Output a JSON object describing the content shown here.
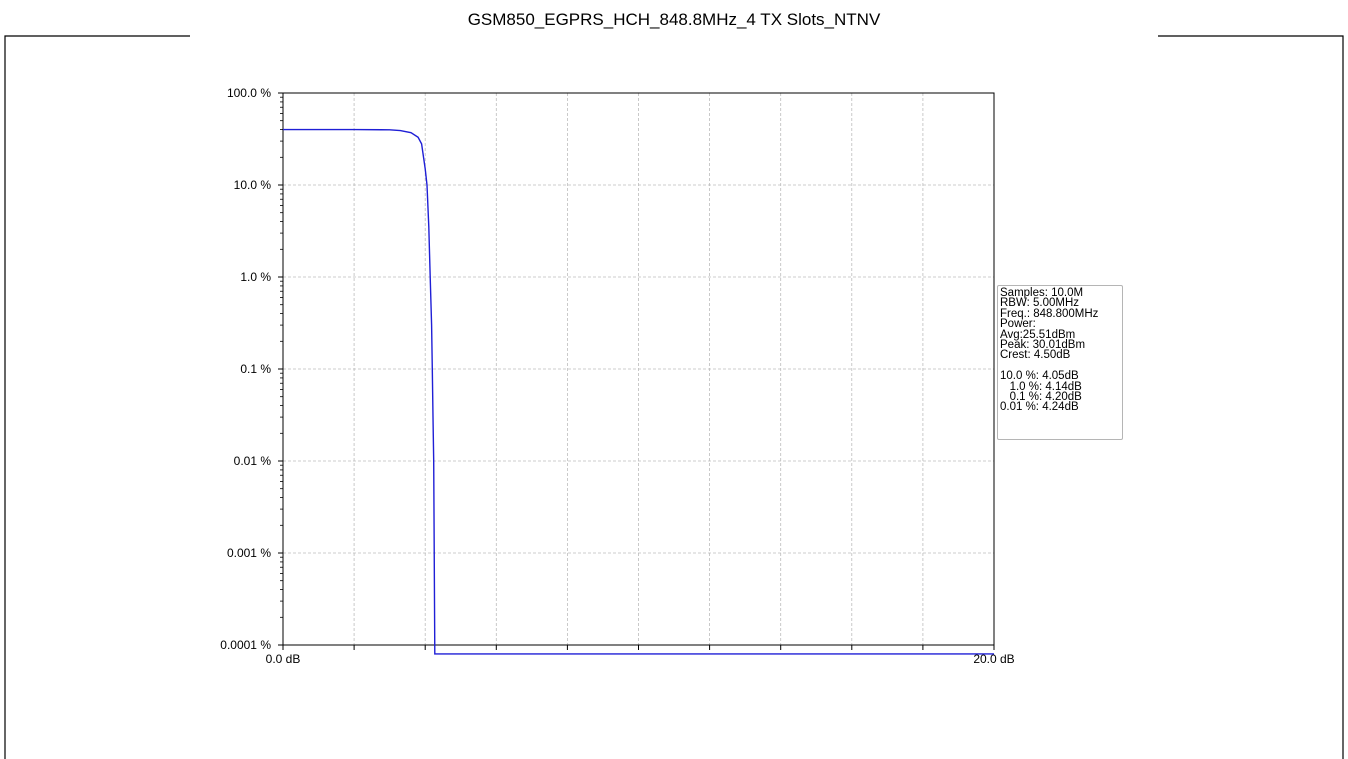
{
  "chart_data": {
    "type": "line",
    "title": "GSM850_EGPRS_HCH_848.8MHz_4 TX Slots_NTNV",
    "xlim": [
      0,
      20
    ],
    "x_unit": "dB",
    "x_tick_labels": [
      {
        "value": 0,
        "label": "0.0 dB"
      },
      {
        "value": 20,
        "label": "20.0 dB"
      }
    ],
    "y_scale": "log",
    "y_unit": "%",
    "ylim": [
      0.0001,
      100
    ],
    "y_tick_labels": [
      {
        "value": 100,
        "label": "100.0 %"
      },
      {
        "value": 10,
        "label": "10.0 %"
      },
      {
        "value": 1,
        "label": "1.0 %"
      },
      {
        "value": 0.1,
        "label": "0.1 %"
      },
      {
        "value": 0.01,
        "label": "0.01 %"
      },
      {
        "value": 0.001,
        "label": "0.001 %"
      },
      {
        "value": 0.0001,
        "label": "0.0001 %"
      }
    ],
    "grid": true,
    "series": [
      {
        "color": "#1f1fd6",
        "x": [
          0,
          1,
          2,
          3,
          3.3,
          3.6,
          3.8,
          3.9,
          4.0,
          4.05,
          4.1,
          4.14,
          4.18,
          4.2,
          4.22,
          4.24,
          4.27,
          4.5,
          10,
          20
        ],
        "y": [
          40,
          40,
          40,
          39.8,
          39,
          37,
          33,
          28,
          15,
          10,
          3.5,
          1.0,
          0.3,
          0.1,
          0.03,
          0.01,
          8e-05,
          8e-05,
          8e-05,
          8e-05
        ]
      }
    ]
  },
  "info_box": {
    "lines": [
      "Samples: 10.0M",
      "RBW: 5.00MHz",
      "Freq.: 848.800MHz",
      "Power:",
      "Avg:25.51dBm",
      "Peak: 30.01dBm",
      "Crest: 4.50dB",
      "",
      "10.0 %: 4.05dB",
      "   1.0 %: 4.14dB",
      "   0.1 %: 4.20dB",
      "0.01 %: 4.24dB"
    ]
  }
}
